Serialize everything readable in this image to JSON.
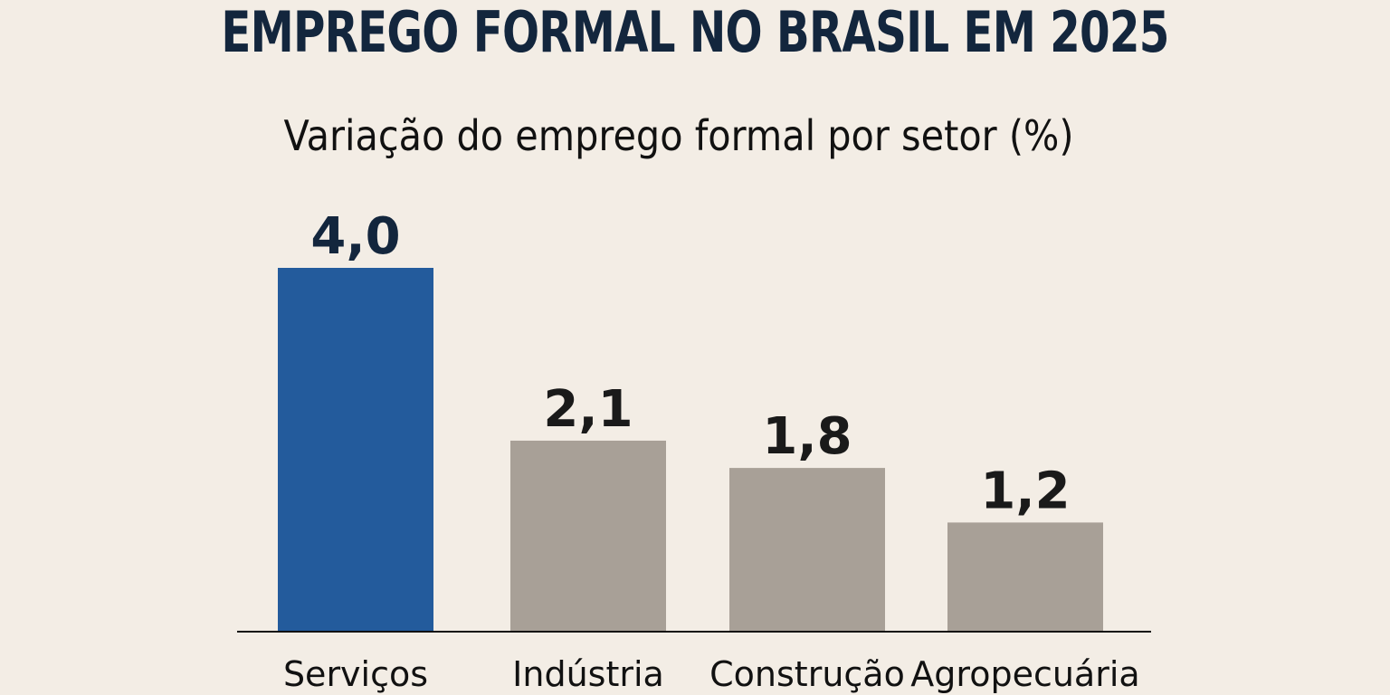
{
  "header": {
    "title": "EMPREGO FORMAL NO BRASIL EM 2025",
    "subtitle": "Variação do emprego formal por setor (%)"
  },
  "chart_data": {
    "type": "bar",
    "title": "EMPREGO FORMAL NO BRASIL EM 2025",
    "subtitle": "Variação do emprego formal por setor (%)",
    "xlabel": "",
    "ylabel": "",
    "categories": [
      "Serviços",
      "Indústria",
      "Construção",
      "Agropecuária"
    ],
    "values": [
      4.0,
      2.1,
      1.8,
      1.2
    ],
    "value_labels": [
      "4,0",
      "2,1",
      "1,8",
      "1,2"
    ],
    "ylim": [
      0,
      4.0
    ],
    "grid": false,
    "legend": "none",
    "colors": {
      "highlight": "#235b9c",
      "default": "#a8a097",
      "value_label_highlight": "#13263d",
      "value_label_default": "#1a1a1a",
      "axis": "#111111"
    },
    "highlight_index": 0
  }
}
